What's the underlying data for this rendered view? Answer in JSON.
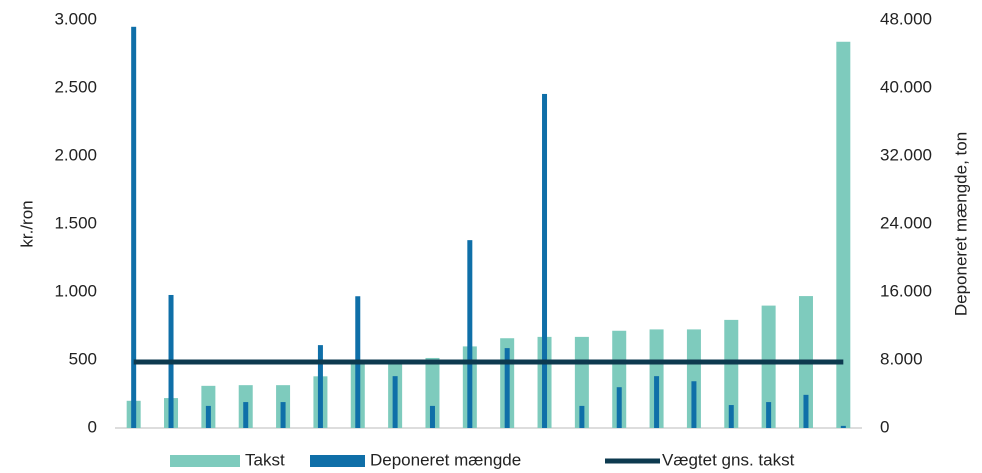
{
  "chart_data": {
    "type": "bar",
    "categories": [
      null,
      null,
      null,
      null,
      null,
      null,
      null,
      null,
      null,
      null,
      null,
      null,
      null,
      null,
      null,
      null,
      null,
      null,
      null,
      null
    ],
    "ylabel": "kr./ron",
    "y2label": "Deponeret mængde, ton",
    "ylim": [
      0,
      3000
    ],
    "yticks": [
      0,
      500,
      {
        "value": 1000,
        "label": "1.000"
      },
      {
        "value": 1500,
        "label": "1.500"
      },
      {
        "value": 2000,
        "label": "2.000"
      },
      {
        "value": 2500,
        "label": "2.500"
      },
      {
        "value": 3000,
        "label": "3.000"
      }
    ],
    "y2lim": [
      0,
      48000
    ],
    "y2ticks": [
      0,
      {
        "value": 8000,
        "label": "8.000"
      },
      {
        "value": 16000,
        "label": "16.000"
      },
      {
        "value": 24000,
        "label": "24.000"
      },
      {
        "value": 32000,
        "label": "32.000"
      },
      {
        "value": 40000,
        "label": "40.000"
      },
      {
        "value": 48000,
        "label": "48.000"
      }
    ],
    "legend": "bottom",
    "series": [
      {
        "name": "Takst",
        "type": "bar",
        "color": "#7ecbbd",
        "values": [
          200,
          220,
          310,
          315,
          315,
          380,
          470,
          490,
          515,
          600,
          660,
          670,
          670,
          715,
          725,
          725,
          795,
          900,
          970,
          2840
        ]
      },
      {
        "name": "Deponeret mængde",
        "type": "bar",
        "axis": "y2",
        "color": "#0f6fa8",
        "values": [
          47200,
          15650,
          2600,
          3050,
          3050,
          9750,
          15500,
          6100,
          2600,
          22100,
          9400,
          39300,
          2600,
          4800,
          6100,
          5500,
          2700,
          3050,
          3900,
          250
        ]
      },
      {
        "name": "Vægtet gns. takst",
        "type": "line",
        "color": "#0d3a4f",
        "values": [
          485,
          485,
          485,
          485,
          485,
          485,
          485,
          485,
          485,
          485,
          485,
          485,
          485,
          485,
          485,
          485,
          485,
          485,
          485,
          485
        ]
      }
    ]
  }
}
